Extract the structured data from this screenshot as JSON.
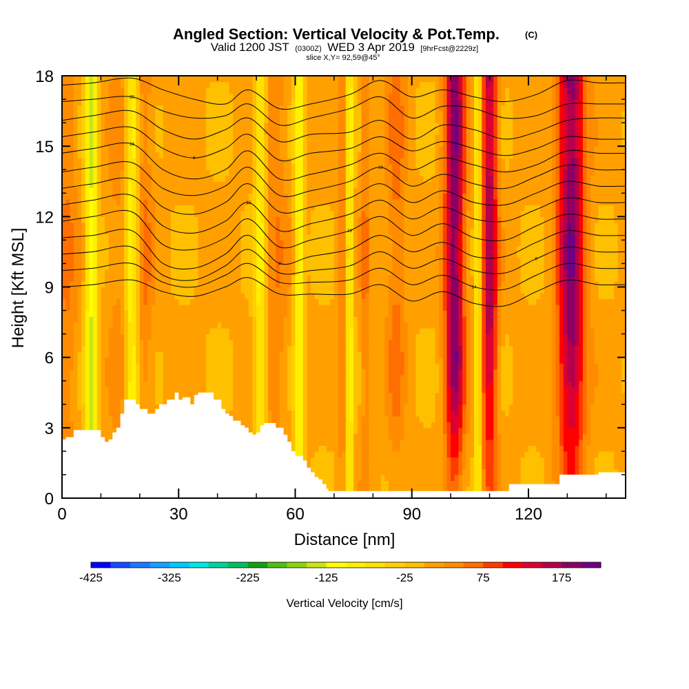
{
  "header": {
    "title": "Angled Section: Vertical Velocity & Pot.Temp.",
    "title_units": "(C)",
    "valid_prefix": "Valid 1200 JST",
    "valid_utc": "(0300Z)",
    "valid_date": "WED 3 Apr 2019",
    "forecast": "[9hrFcst@2229z]",
    "slice": "slice X,Y= 92,59@45°"
  },
  "colors": {
    "palette": [
      "#0000ff",
      "#1a4cff",
      "#1e78ff",
      "#14a0ff",
      "#00c8ff",
      "#00e6e6",
      "#00d296",
      "#00be64",
      "#14a014",
      "#50be14",
      "#8cd214",
      "#c8e614",
      "#ffff00",
      "#fff000",
      "#ffe000",
      "#ffd000",
      "#ffc000",
      "#ffa000",
      "#ff8c00",
      "#ff6e00",
      "#ff3c00",
      "#ff0000",
      "#dc0032",
      "#b4004b",
      "#8c0064",
      "#6e0082"
    ],
    "terrain": "#ffffff",
    "contour": "#000000"
  },
  "chart_data": {
    "type": "heatmap",
    "title": "Angled Section: Vertical Velocity & Pot.Temp. (C)",
    "xlabel": "Distance [nm]",
    "ylabel": "Height [Kft MSL]",
    "xlim": [
      0,
      145
    ],
    "ylim": [
      0,
      18
    ],
    "xticks": [
      "0",
      "30",
      "60",
      "90",
      "120"
    ],
    "yticks": [
      "0",
      "3",
      "6",
      "9",
      "12",
      "15",
      "18"
    ],
    "colorbar": {
      "label": "Vertical Velocity [cm/s]",
      "min": -425,
      "max": 225,
      "step": 25,
      "tick_labels": [
        "-425",
        "-325",
        "-225",
        "-125",
        "-25",
        "75",
        "175"
      ]
    },
    "updraft_columns": [
      {
        "x": 1,
        "w": 3,
        "amp": 45
      },
      {
        "x": 15,
        "w": 3,
        "amp": 30
      },
      {
        "x": 21,
        "w": 2.5,
        "amp": 45
      },
      {
        "x": 55,
        "w": 3,
        "amp": 40
      },
      {
        "x": 72,
        "w": 1.2,
        "amp": 45
      },
      {
        "x": 78,
        "w": 1.2,
        "amp": 45
      },
      {
        "x": 86,
        "w": 2.5,
        "amp": 50
      },
      {
        "x": 101,
        "w": 2.5,
        "amp": 190
      },
      {
        "x": 110,
        "w": 2,
        "amp": 160
      },
      {
        "x": 131,
        "w": 3.5,
        "amp": 185
      }
    ],
    "downdraft_columns": [
      {
        "x": 7.5,
        "w": 1.5,
        "amp": -130
      },
      {
        "x": 18,
        "w": 1.8,
        "amp": -110
      },
      {
        "x": 51,
        "w": 1.5,
        "amp": -90
      },
      {
        "x": 61,
        "w": 1.2,
        "amp": -110
      },
      {
        "x": 74,
        "w": 0.8,
        "amp": -110
      },
      {
        "x": 107,
        "w": 0.8,
        "amp": -110
      }
    ],
    "terrain_profile": {
      "x": [
        0,
        1,
        3,
        5,
        8,
        10,
        11,
        12,
        13,
        14,
        15,
        16,
        17,
        19,
        20,
        22,
        24,
        25,
        27,
        29,
        30,
        31,
        33,
        34,
        35,
        37,
        39,
        41,
        42,
        43,
        44,
        46,
        47,
        48,
        49,
        50,
        51,
        52,
        53,
        55,
        57,
        58,
        59,
        60,
        62,
        63,
        64,
        65,
        66,
        67,
        68,
        68.5,
        100,
        109,
        112,
        115,
        120,
        128,
        138,
        145
      ],
      "y": [
        2.5,
        2.6,
        2.9,
        2.9,
        2.9,
        2.6,
        2.4,
        2.5,
        2.8,
        3.0,
        3.6,
        4.2,
        4.2,
        4.0,
        3.8,
        3.6,
        3.8,
        4.0,
        4.2,
        4.5,
        4.2,
        4.3,
        4.0,
        4.4,
        4.5,
        4.5,
        4.2,
        3.8,
        3.6,
        3.5,
        3.3,
        3.1,
        3.0,
        2.8,
        2.7,
        2.8,
        3.1,
        3.2,
        3.2,
        3.0,
        2.7,
        2.4,
        2.0,
        1.8,
        1.6,
        1.3,
        1.1,
        0.9,
        0.8,
        0.6,
        0.4,
        0.3,
        0.3,
        0.3,
        0.3,
        0.6,
        0.6,
        1.0,
        1.1,
        1.3
      ]
    },
    "theta_contours": {
      "label_values": [
        "20",
        "18",
        "16",
        "14",
        "12",
        "10",
        "8",
        "6",
        "4"
      ],
      "lines": [
        {
          "x": [
            0,
            8,
            18,
            26,
            34,
            42,
            48,
            56,
            64,
            74,
            82,
            90,
            98,
            106,
            114,
            122,
            130,
            138,
            145
          ],
          "y": [
            17.6,
            17.7,
            17.9,
            17.4,
            17.0,
            16.8,
            17.4,
            16.6,
            16.8,
            17.2,
            17.8,
            17.1,
            17.4,
            17.1,
            16.9,
            17.2,
            17.8,
            17.7,
            17.7
          ]
        },
        {
          "x": [
            0,
            8,
            18,
            26,
            34,
            42,
            48,
            56,
            64,
            74,
            82,
            90,
            98,
            106,
            114,
            122,
            130,
            138,
            145
          ],
          "y": [
            16.9,
            17.0,
            17.1,
            16.5,
            16.2,
            16.3,
            16.8,
            15.9,
            16.2,
            16.6,
            17.1,
            16.2,
            16.7,
            16.6,
            16.2,
            16.3,
            16.8,
            16.8,
            16.8
          ]
        },
        {
          "x": [
            0,
            8,
            18,
            26,
            34,
            42,
            48,
            56,
            64,
            74,
            82,
            90,
            98,
            106,
            114,
            122,
            130,
            138,
            145
          ],
          "y": [
            16.1,
            16.3,
            16.5,
            15.7,
            15.3,
            15.7,
            16.2,
            15.2,
            15.5,
            15.6,
            16.1,
            15.3,
            15.9,
            15.7,
            15.3,
            15.6,
            16.1,
            16.2,
            16.2
          ]
        },
        {
          "x": [
            0,
            8,
            18,
            26,
            34,
            42,
            48,
            56,
            64,
            74,
            82,
            90,
            98,
            106,
            114,
            122,
            130,
            138,
            145
          ],
          "y": [
            15.4,
            15.6,
            15.8,
            14.9,
            14.5,
            14.9,
            15.5,
            14.4,
            14.7,
            14.9,
            15.4,
            14.8,
            15.2,
            14.9,
            14.6,
            14.9,
            15.4,
            15.3,
            15.3
          ]
        },
        {
          "x": [
            0,
            8,
            18,
            26,
            34,
            42,
            48,
            56,
            64,
            74,
            82,
            90,
            98,
            106,
            114,
            122,
            130,
            138,
            145
          ],
          "y": [
            14.7,
            14.9,
            15.1,
            14.0,
            13.6,
            14.0,
            14.8,
            13.6,
            13.8,
            14.2,
            14.7,
            14.0,
            14.5,
            14.2,
            13.9,
            14.2,
            14.8,
            14.7,
            14.7
          ]
        },
        {
          "x": [
            0,
            8,
            18,
            26,
            34,
            42,
            48,
            56,
            64,
            74,
            82,
            90,
            98,
            106,
            114,
            122,
            130,
            138,
            145
          ],
          "y": [
            13.9,
            14.1,
            14.3,
            13.2,
            12.9,
            13.3,
            14.1,
            12.9,
            13.1,
            13.5,
            14.1,
            13.3,
            13.8,
            13.4,
            13.2,
            13.7,
            14.2,
            14.0,
            14.0
          ]
        },
        {
          "x": [
            0,
            8,
            18,
            26,
            34,
            42,
            48,
            56,
            64,
            74,
            82,
            90,
            98,
            106,
            114,
            122,
            130,
            138,
            145
          ],
          "y": [
            13.2,
            13.4,
            13.6,
            12.4,
            12.1,
            12.6,
            13.4,
            12.2,
            12.4,
            12.8,
            13.4,
            12.6,
            13.1,
            12.6,
            12.5,
            13.0,
            13.5,
            13.3,
            13.3
          ]
        },
        {
          "x": [
            0,
            8,
            18,
            26,
            34,
            42,
            48,
            56,
            64,
            74,
            82,
            90,
            98,
            106,
            114,
            122,
            130,
            138,
            145
          ],
          "y": [
            12.5,
            12.7,
            12.9,
            11.6,
            11.3,
            11.8,
            12.6,
            11.4,
            11.7,
            12.1,
            12.7,
            11.9,
            12.4,
            11.9,
            11.8,
            12.3,
            12.8,
            12.6,
            12.6
          ]
        },
        {
          "x": [
            0,
            8,
            18,
            26,
            34,
            42,
            48,
            56,
            64,
            74,
            82,
            90,
            98,
            106,
            114,
            122,
            130,
            138,
            145
          ],
          "y": [
            11.8,
            12.0,
            12.2,
            10.8,
            10.6,
            11.1,
            11.9,
            10.7,
            11.0,
            11.4,
            12.0,
            11.2,
            11.7,
            11.1,
            11.0,
            11.6,
            12.1,
            11.9,
            11.9
          ]
        },
        {
          "x": [
            0,
            8,
            18,
            26,
            34,
            42,
            48,
            56,
            64,
            74,
            82,
            90,
            98,
            106,
            114,
            122,
            130,
            138,
            145
          ],
          "y": [
            11.1,
            11.2,
            11.4,
            10.0,
            9.8,
            10.4,
            11.2,
            10.0,
            10.3,
            10.6,
            11.2,
            10.5,
            10.9,
            10.3,
            10.3,
            10.9,
            11.4,
            11.2,
            11.2
          ]
        },
        {
          "x": [
            0,
            8,
            18,
            26,
            34,
            42,
            48,
            56,
            64,
            74,
            82,
            90,
            98,
            106,
            114,
            122,
            130,
            138,
            145
          ],
          "y": [
            10.4,
            10.5,
            10.7,
            9.5,
            9.3,
            9.9,
            10.6,
            9.6,
            9.7,
            9.9,
            10.5,
            9.8,
            10.2,
            9.7,
            9.6,
            10.2,
            10.7,
            10.5,
            10.5
          ]
        },
        {
          "x": [
            0,
            8,
            18,
            26,
            34,
            42,
            48,
            56,
            64,
            74,
            82,
            90,
            98,
            106,
            114,
            122,
            130,
            138,
            145
          ],
          "y": [
            9.7,
            9.8,
            10.0,
            9.2,
            9.0,
            9.5,
            10.0,
            9.2,
            9.2,
            9.3,
            9.8,
            9.1,
            9.5,
            9.0,
            8.9,
            9.5,
            10.0,
            9.8,
            9.8
          ]
        },
        {
          "x": [
            0,
            8,
            18,
            26,
            34,
            42,
            48,
            56,
            64,
            74,
            82,
            90,
            98,
            106,
            114,
            122,
            130,
            138,
            145
          ],
          "y": [
            9.0,
            9.1,
            9.3,
            8.8,
            8.6,
            9.0,
            9.4,
            8.7,
            8.7,
            8.7,
            9.1,
            8.4,
            8.8,
            8.3,
            8.2,
            8.8,
            9.3,
            9.1,
            9.1
          ]
        }
      ]
    }
  }
}
